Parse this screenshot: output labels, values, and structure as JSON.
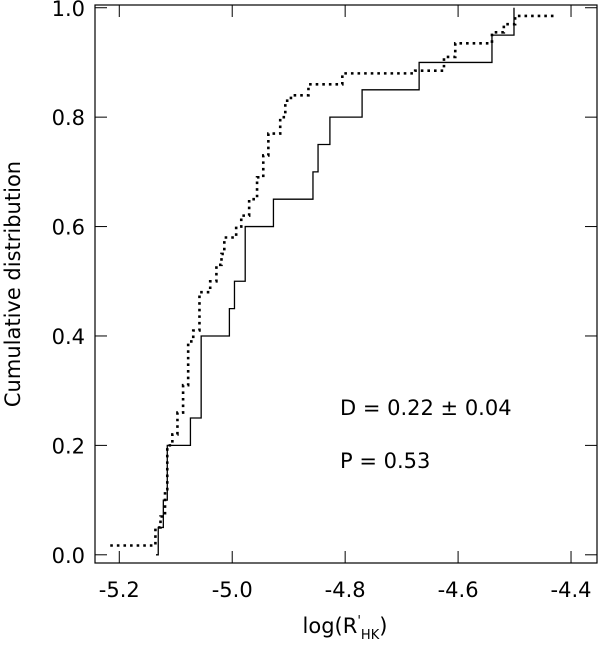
{
  "chart_data": {
    "type": "step",
    "xlabel": {
      "main": "log(R",
      "sup": "'",
      "sub": "HK",
      "close": ")"
    },
    "ylabel": "Cumulative distribution",
    "annotations": [
      "D = 0.22 ± 0.04",
      "P = 0.53"
    ],
    "xlim": [
      -5.243,
      -4.354
    ],
    "ylim": [
      -0.015,
      1.005
    ],
    "xticks": [
      -5.2,
      {
        "value": -5.0,
        "label": "-5.0"
      },
      -4.8,
      -4.6,
      -4.4
    ],
    "yticks": [
      {
        "value": 0,
        "label": "0.0"
      },
      0.2,
      0.4,
      0.6,
      0.8,
      {
        "value": 1,
        "label": "1.0"
      }
    ],
    "series": [
      {
        "color": "#000000",
        "dash": "solid",
        "x": [
          -5.135,
          -5.131,
          -5.122,
          -5.115,
          -5.074,
          -5.055,
          -5.005,
          -4.996,
          -4.977,
          -4.927,
          -4.857,
          -4.848,
          -4.827,
          -4.77,
          -4.669,
          -4.54,
          -4.501
        ],
        "values": [
          0,
          0.05,
          0.1,
          0.2,
          0.25,
          0.4,
          0.45,
          0.5,
          0.6,
          0.65,
          0.7,
          0.75,
          0.8,
          0.85,
          0.9,
          0.95,
          1.0
        ]
      },
      {
        "color": "#000000",
        "dash": "dotted",
        "x": [
          -5.216,
          -5.136,
          -5.127,
          -5.119,
          -5.115,
          -5.106,
          -5.097,
          -5.087,
          -5.078,
          -5.069,
          -5.058,
          -5.039,
          -5.028,
          -5.019,
          -5.014,
          -4.993,
          -4.984,
          -4.97,
          -4.956,
          -4.945,
          -4.936,
          -4.915,
          -4.906,
          -4.896,
          -4.865,
          -4.805,
          -4.676,
          -4.625,
          -4.605,
          -4.54,
          -4.519,
          -4.499,
          -4.428
        ],
        "values": [
          0.017,
          0.05,
          0.07,
          0.12,
          0.2,
          0.22,
          0.26,
          0.31,
          0.39,
          0.41,
          0.48,
          0.5,
          0.53,
          0.55,
          0.58,
          0.6,
          0.62,
          0.65,
          0.69,
          0.73,
          0.77,
          0.8,
          0.83,
          0.84,
          0.86,
          0.88,
          0.885,
          0.91,
          0.935,
          0.955,
          0.97,
          0.985,
          0.985
        ]
      }
    ]
  }
}
